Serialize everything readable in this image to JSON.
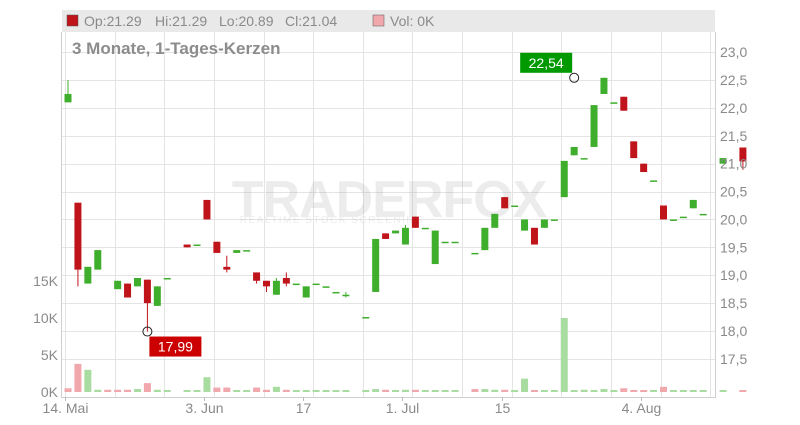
{
  "chart_data": {
    "type": "candlestick",
    "subtitle": "3 Monate, 1-Tages-Kerzen",
    "ohlc_header": {
      "op": "Op:21.29",
      "hi": "Hi:21.29",
      "lo": "Lo:20.89",
      "cl": "Cl:21.04"
    },
    "volume_header": "Vol: 0K",
    "watermark": "TRADERFOX",
    "watermark_tagline": "REALTIME STOCK SCREENING",
    "price_axis": {
      "ylim": [
        17.25,
        23.25
      ],
      "ticks": [
        "17,5",
        "18,0",
        "18,5",
        "19,0",
        "19,5",
        "20,0",
        "20,5",
        "21,0",
        "21,5",
        "22,0",
        "22,5",
        "23,0"
      ]
    },
    "volume_axis": {
      "ylim": [
        0,
        18000
      ],
      "ticks": [
        "0K",
        "5K",
        "10K",
        "15K"
      ]
    },
    "x_ticks": [
      {
        "label": "14. Mai",
        "index": 0
      },
      {
        "label": "3. Jun",
        "index": 14
      },
      {
        "label": "17",
        "index": 24
      },
      {
        "label": "1. Jul",
        "index": 34
      },
      {
        "label": "15",
        "index": 44
      },
      {
        "label": "4. Aug",
        "index": 58
      }
    ],
    "annotations": [
      {
        "label": "22,54",
        "index": 51,
        "value": 22.54,
        "type": "high",
        "color": "#009900"
      },
      {
        "label": "17,99",
        "index": 8,
        "value": 17.99,
        "type": "low",
        "color": "#cc0000"
      }
    ],
    "colors": {
      "up": "#3fae2c",
      "down": "#c0141b",
      "vol_up": "#a8dca0",
      "vol_down": "#f0a8ad",
      "grid": "#e4e4e4"
    },
    "candles": [
      {
        "o": 22.1,
        "h": 22.5,
        "l": 22.1,
        "c": 22.25
      },
      {
        "o": 20.3,
        "h": 20.3,
        "l": 18.8,
        "c": 19.1
      },
      {
        "o": 18.85,
        "h": 19.15,
        "l": 18.85,
        "c": 19.15
      },
      {
        "o": 19.1,
        "h": 19.45,
        "l": 19.1,
        "c": 19.45
      },
      null,
      {
        "o": 18.75,
        "h": 18.9,
        "l": 18.75,
        "c": 18.9
      },
      {
        "o": 18.85,
        "h": 18.85,
        "l": 18.6,
        "c": 18.6
      },
      {
        "o": 18.8,
        "h": 18.95,
        "l": 18.8,
        "c": 18.95
      },
      {
        "o": 18.92,
        "h": 18.92,
        "l": 17.99,
        "c": 18.5
      },
      {
        "o": 18.45,
        "h": 18.8,
        "l": 18.45,
        "c": 18.8
      },
      {
        "o": 18.95,
        "h": 18.95,
        "l": 18.95,
        "c": 18.95
      },
      null,
      {
        "o": 19.55,
        "h": 19.55,
        "l": 19.5,
        "c": 19.5
      },
      {
        "o": 19.55,
        "h": 19.55,
        "l": 19.55,
        "c": 19.55
      },
      {
        "o": 20.35,
        "h": 20.35,
        "l": 20.0,
        "c": 20.0
      },
      {
        "o": 19.6,
        "h": 19.6,
        "l": 19.4,
        "c": 19.4
      },
      {
        "o": 19.15,
        "h": 19.35,
        "l": 19.05,
        "c": 19.1
      },
      {
        "o": 19.4,
        "h": 19.45,
        "l": 19.4,
        "c": 19.45
      },
      {
        "o": 19.45,
        "h": 19.45,
        "l": 19.45,
        "c": 19.45
      },
      {
        "o": 19.05,
        "h": 19.05,
        "l": 18.85,
        "c": 18.9
      },
      {
        "o": 18.9,
        "h": 18.9,
        "l": 18.7,
        "c": 18.8
      },
      {
        "o": 18.65,
        "h": 18.95,
        "l": 18.65,
        "c": 18.9
      },
      {
        "o": 18.95,
        "h": 19.05,
        "l": 18.8,
        "c": 18.85
      },
      {
        "o": 18.85,
        "h": 18.85,
        "l": 18.85,
        "c": 18.85
      },
      {
        "o": 18.6,
        "h": 18.8,
        "l": 18.6,
        "c": 18.8
      },
      {
        "o": 18.85,
        "h": 18.85,
        "l": 18.85,
        "c": 18.85
      },
      {
        "o": 18.8,
        "h": 18.8,
        "l": 18.8,
        "c": 18.8
      },
      {
        "o": 18.7,
        "h": 18.7,
        "l": 18.7,
        "c": 18.7
      },
      {
        "o": 18.65,
        "h": 18.7,
        "l": 18.6,
        "c": 18.65
      },
      null,
      {
        "o": 18.25,
        "h": 18.25,
        "l": 18.25,
        "c": 18.25
      },
      {
        "o": 18.7,
        "h": 19.65,
        "l": 18.7,
        "c": 19.65
      },
      {
        "o": 19.75,
        "h": 19.75,
        "l": 19.65,
        "c": 19.65
      },
      {
        "o": 19.75,
        "h": 19.8,
        "l": 19.75,
        "c": 19.8
      },
      {
        "o": 19.55,
        "h": 19.9,
        "l": 19.55,
        "c": 19.85
      },
      {
        "o": 20.05,
        "h": 20.05,
        "l": 19.85,
        "c": 19.85
      },
      {
        "o": 19.85,
        "h": 19.85,
        "l": 19.85,
        "c": 19.85
      },
      {
        "o": 19.2,
        "h": 19.8,
        "l": 19.2,
        "c": 19.8
      },
      {
        "o": 19.6,
        "h": 19.6,
        "l": 19.6,
        "c": 19.6
      },
      {
        "o": 19.6,
        "h": 19.6,
        "l": 19.6,
        "c": 19.6
      },
      null,
      {
        "o": 19.4,
        "h": 19.4,
        "l": 19.4,
        "c": 19.4
      },
      {
        "o": 19.45,
        "h": 19.85,
        "l": 19.45,
        "c": 19.85
      },
      {
        "o": 19.85,
        "h": 20.1,
        "l": 19.85,
        "c": 20.1
      },
      {
        "o": 20.4,
        "h": 20.4,
        "l": 20.2,
        "c": 20.2
      },
      {
        "o": 20.25,
        "h": 20.25,
        "l": 20.25,
        "c": 20.25
      },
      {
        "o": 19.8,
        "h": 20.0,
        "l": 19.8,
        "c": 20.0
      },
      {
        "o": 19.85,
        "h": 19.85,
        "l": 19.55,
        "c": 19.55
      },
      {
        "o": 19.85,
        "h": 20.0,
        "l": 19.85,
        "c": 20.0
      },
      {
        "o": 20.0,
        "h": 20.0,
        "l": 20.0,
        "c": 20.0
      },
      {
        "o": 20.4,
        "h": 21.05,
        "l": 20.4,
        "c": 21.05
      },
      {
        "o": 21.15,
        "h": 21.3,
        "l": 21.15,
        "c": 21.3
      },
      {
        "o": 21.1,
        "h": 21.1,
        "l": 21.1,
        "c": 21.1
      },
      {
        "o": 21.3,
        "h": 22.05,
        "l": 21.3,
        "c": 22.05
      },
      {
        "o": 22.25,
        "h": 22.54,
        "l": 22.25,
        "c": 22.54
      },
      {
        "o": 22.1,
        "h": 22.1,
        "l": 22.1,
        "c": 22.1
      },
      {
        "o": 22.2,
        "h": 22.2,
        "l": 21.95,
        "c": 21.95
      },
      {
        "o": 21.4,
        "h": 21.4,
        "l": 21.1,
        "c": 21.1
      },
      {
        "o": 21.0,
        "h": 21.0,
        "l": 20.85,
        "c": 20.85
      },
      {
        "o": 20.7,
        "h": 20.7,
        "l": 20.7,
        "c": 20.7
      },
      {
        "o": 20.25,
        "h": 20.25,
        "l": 20.0,
        "c": 20.0
      },
      {
        "o": 20.0,
        "h": 20.0,
        "l": 20.0,
        "c": 20.0
      },
      {
        "o": 20.05,
        "h": 20.05,
        "l": 20.05,
        "c": 20.05
      },
      {
        "o": 20.2,
        "h": 20.35,
        "l": 20.2,
        "c": 20.35
      },
      {
        "o": 20.1,
        "h": 20.1,
        "l": 20.1,
        "c": 20.1
      },
      null,
      {
        "o": 21.0,
        "h": 21.1,
        "l": 21.0,
        "c": 21.1
      },
      null,
      {
        "o": 21.29,
        "h": 21.29,
        "l": 20.89,
        "c": 21.04
      }
    ],
    "volumes": [
      {
        "v": 500,
        "up": false
      },
      {
        "v": 3800,
        "up": false
      },
      {
        "v": 3000,
        "up": true
      },
      {
        "v": 300,
        "up": true
      },
      {
        "v": 300,
        "up": false
      },
      {
        "v": 300,
        "up": false
      },
      {
        "v": 300,
        "up": false
      },
      {
        "v": 400,
        "up": true
      },
      {
        "v": 1200,
        "up": false
      },
      {
        "v": 300,
        "up": true
      },
      {
        "v": 0,
        "up": true
      },
      null,
      {
        "v": 0,
        "up": true
      },
      {
        "v": 0,
        "up": true
      },
      {
        "v": 2000,
        "up": true
      },
      {
        "v": 600,
        "up": false
      },
      {
        "v": 600,
        "up": false
      },
      {
        "v": 0,
        "up": true
      },
      {
        "v": 0,
        "up": true
      },
      {
        "v": 600,
        "up": false
      },
      {
        "v": 300,
        "up": false
      },
      {
        "v": 700,
        "up": true
      },
      {
        "v": 300,
        "up": false
      },
      {
        "v": 0,
        "up": true
      },
      {
        "v": 0,
        "up": true
      },
      {
        "v": 0,
        "up": true
      },
      {
        "v": 0,
        "up": true
      },
      {
        "v": 0,
        "up": true
      },
      {
        "v": 0,
        "up": true
      },
      null,
      {
        "v": 0,
        "up": true
      },
      {
        "v": 400,
        "up": true
      },
      {
        "v": 300,
        "up": false
      },
      {
        "v": 0,
        "up": true
      },
      {
        "v": 300,
        "up": true
      },
      {
        "v": 300,
        "up": false
      },
      {
        "v": 0,
        "up": true
      },
      {
        "v": 0,
        "up": true
      },
      {
        "v": 0,
        "up": true
      },
      {
        "v": 0,
        "up": true
      },
      null,
      {
        "v": 400,
        "up": false
      },
      {
        "v": 400,
        "up": true
      },
      {
        "v": 300,
        "up": true
      },
      {
        "v": 300,
        "up": false
      },
      {
        "v": 0,
        "up": true
      },
      {
        "v": 1800,
        "up": true
      },
      {
        "v": 0,
        "up": false
      },
      {
        "v": 0,
        "up": true
      },
      {
        "v": 0,
        "up": true
      },
      {
        "v": 10000,
        "up": true
      },
      {
        "v": 0,
        "up": true
      },
      {
        "v": 300,
        "up": true
      },
      {
        "v": 0,
        "up": true
      },
      {
        "v": 400,
        "up": true
      },
      {
        "v": 0,
        "up": true
      },
      {
        "v": 500,
        "up": false
      },
      {
        "v": 0,
        "up": false
      },
      {
        "v": 0,
        "up": false
      },
      {
        "v": 0,
        "up": true
      },
      {
        "v": 700,
        "up": false
      },
      {
        "v": 0,
        "up": true
      },
      {
        "v": 0,
        "up": true
      },
      {
        "v": 0,
        "up": true
      },
      {
        "v": 0,
        "up": true
      },
      null,
      {
        "v": 0,
        "up": true
      },
      null,
      {
        "v": 0,
        "up": false
      }
    ]
  }
}
